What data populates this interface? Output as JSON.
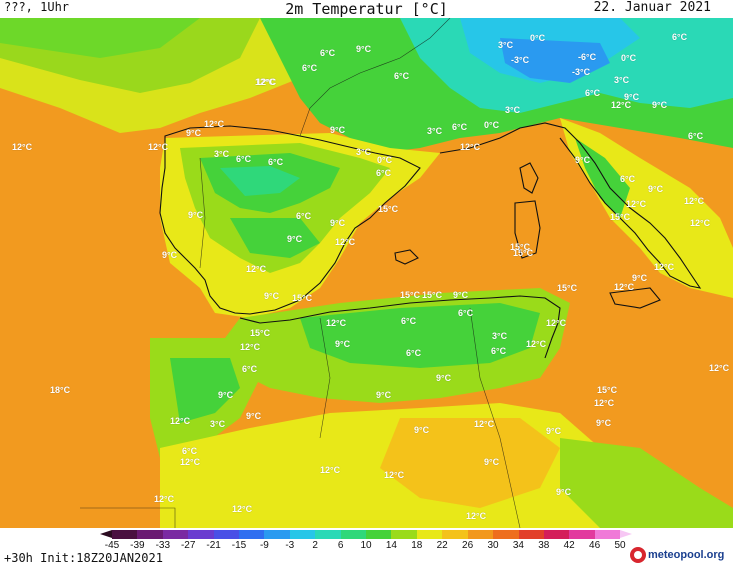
{
  "header": {
    "left_label": "???, 1Uhr",
    "title": "2m Temperatur [°C]",
    "date": "22. Januar 2021"
  },
  "footer": {
    "run_info": "+30h Init:18Z20JAN2021",
    "logo_text": "meteopool.org"
  },
  "legend": {
    "ticks": [
      "-45",
      "-39",
      "-33",
      "-27",
      "-21",
      "-15",
      "-9",
      "-3",
      "2",
      "6",
      "10",
      "14",
      "18",
      "22",
      "26",
      "30",
      "34",
      "38",
      "42",
      "46",
      "50"
    ],
    "colors": [
      "#2b0b20",
      "#4a1040",
      "#6a1a72",
      "#7a2aa2",
      "#6a3bd0",
      "#4a50e6",
      "#2f6ef0",
      "#2a9af0",
      "#27c6e8",
      "#2ad9b6",
      "#2fd87a",
      "#45d23a",
      "#9adb1a",
      "#e8e818",
      "#f4c21a",
      "#f2981c",
      "#ee6e1e",
      "#e2402a",
      "#d41e5a",
      "#e23a9e",
      "#f07ad8",
      "#f7c7f4"
    ]
  },
  "map": {
    "temperature_labels": [
      {
        "text": "6°C"
      },
      {
        "text": "9°C"
      },
      {
        "text": "0°C"
      },
      {
        "text": "3°C"
      },
      {
        "text": "6°C"
      },
      {
        "text": "-6°C"
      },
      {
        "text": "-3°C"
      },
      {
        "text": "0°C"
      },
      {
        "text": "-3°C"
      },
      {
        "text": "6°C"
      },
      {
        "text": "3°C"
      },
      {
        "text": "12°C"
      },
      {
        "text": "6°C"
      },
      {
        "text": "6°C"
      },
      {
        "text": "9°C"
      },
      {
        "text": "12°C"
      },
      {
        "text": "12°C"
      },
      {
        "text": "9°C"
      },
      {
        "text": "12°C"
      },
      {
        "text": "12°C"
      },
      {
        "text": "12°C"
      },
      {
        "text": "9°C"
      },
      {
        "text": "6°C"
      },
      {
        "text": "9°C"
      },
      {
        "text": "6°C"
      },
      {
        "text": "0°C"
      },
      {
        "text": "3°C"
      },
      {
        "text": "3°C"
      },
      {
        "text": "3°C"
      },
      {
        "text": "6°C"
      },
      {
        "text": "6°C"
      },
      {
        "text": "3°C"
      },
      {
        "text": "0°C"
      },
      {
        "text": "6°C"
      },
      {
        "text": "12°C"
      },
      {
        "text": "9°C"
      },
      {
        "text": "6°C"
      },
      {
        "text": "9°C"
      },
      {
        "text": "12°C"
      },
      {
        "text": "15°C"
      },
      {
        "text": "6°C"
      },
      {
        "text": "9°C"
      },
      {
        "text": "15°C"
      },
      {
        "text": "12°C"
      },
      {
        "text": "12°C"
      },
      {
        "text": "9°C"
      },
      {
        "text": "9°C"
      },
      {
        "text": "15°C"
      },
      {
        "text": "15°C"
      },
      {
        "text": "12°C"
      },
      {
        "text": "9°C"
      },
      {
        "text": "12°C"
      },
      {
        "text": "9°C"
      },
      {
        "text": "12°C"
      },
      {
        "text": "15°C"
      },
      {
        "text": "12°C"
      },
      {
        "text": "9°C"
      },
      {
        "text": "15°C"
      },
      {
        "text": "15°C"
      },
      {
        "text": "15°C"
      },
      {
        "text": "9°C"
      },
      {
        "text": "12°C"
      },
      {
        "text": "12°C"
      },
      {
        "text": "6°C"
      },
      {
        "text": "6°C"
      },
      {
        "text": "15°C"
      },
      {
        "text": "3°C"
      },
      {
        "text": "12°C"
      },
      {
        "text": "9°C"
      },
      {
        "text": "12°C"
      },
      {
        "text": "6°C"
      },
      {
        "text": "6°C"
      },
      {
        "text": "6°C"
      },
      {
        "text": "18°C"
      },
      {
        "text": "9°C"
      },
      {
        "text": "9°C"
      },
      {
        "text": "15°C"
      },
      {
        "text": "9°C"
      },
      {
        "text": "12°C"
      },
      {
        "text": "12°C"
      },
      {
        "text": "3°C"
      },
      {
        "text": "9°C"
      },
      {
        "text": "12°C"
      },
      {
        "text": "9°C"
      },
      {
        "text": "9°C"
      },
      {
        "text": "6°C"
      },
      {
        "text": "12°C"
      },
      {
        "text": "9°C"
      },
      {
        "text": "12°C"
      },
      {
        "text": "12°C"
      },
      {
        "text": "12°C"
      },
      {
        "text": "9°C"
      },
      {
        "text": "12°C"
      },
      {
        "text": "12°C"
      },
      {
        "text": "12°C"
      },
      {
        "text": "9°C"
      }
    ]
  }
}
